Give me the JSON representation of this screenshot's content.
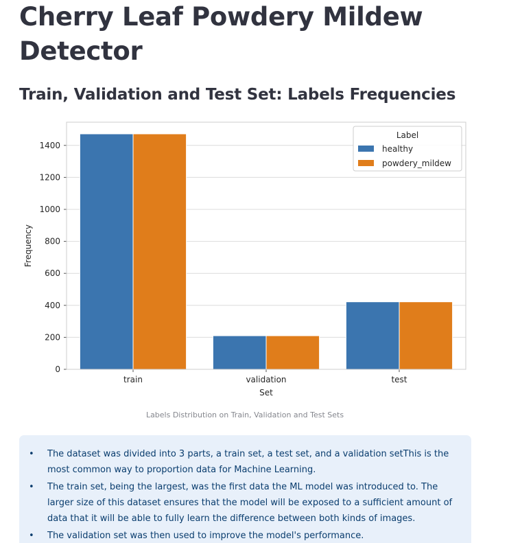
{
  "app": {
    "title": "Cherry Leaf Powdery Mildew Detector"
  },
  "section": {
    "title": "Train, Validation and Test Set: Labels Frequencies"
  },
  "chart_data": {
    "type": "bar",
    "categories": [
      "train",
      "validation",
      "test"
    ],
    "series": [
      {
        "name": "healthy",
        "values": [
          1472,
          210,
          422
        ],
        "color": "#3b75af"
      },
      {
        "name": "powdery_mildew",
        "values": [
          1472,
          210,
          422
        ],
        "color": "#e07d1b"
      }
    ],
    "xlabel": "Set",
    "ylabel": "Frequency",
    "ylim": [
      0,
      1545
    ],
    "yticks": [
      0,
      200,
      400,
      600,
      800,
      1000,
      1200,
      1400
    ],
    "grid": true,
    "legend": {
      "title": "Label",
      "placement": "top-right"
    }
  },
  "figure": {
    "caption": "Labels Distribution on Train, Validation and Test Sets"
  },
  "info": {
    "items": [
      "The dataset was divided into 3 parts, a train set, a test set, and a validation setThis is the most common way to proportion data for Machine Learning.",
      "The train set, being the largest, was the first data the ML model was introduced to. The larger size of this dataset ensures that the model will be exposed to a sufficient amount of data that it will be able to fully learn the difference between both kinds of images.",
      "The validation set was then used to improve the model's performance."
    ]
  }
}
